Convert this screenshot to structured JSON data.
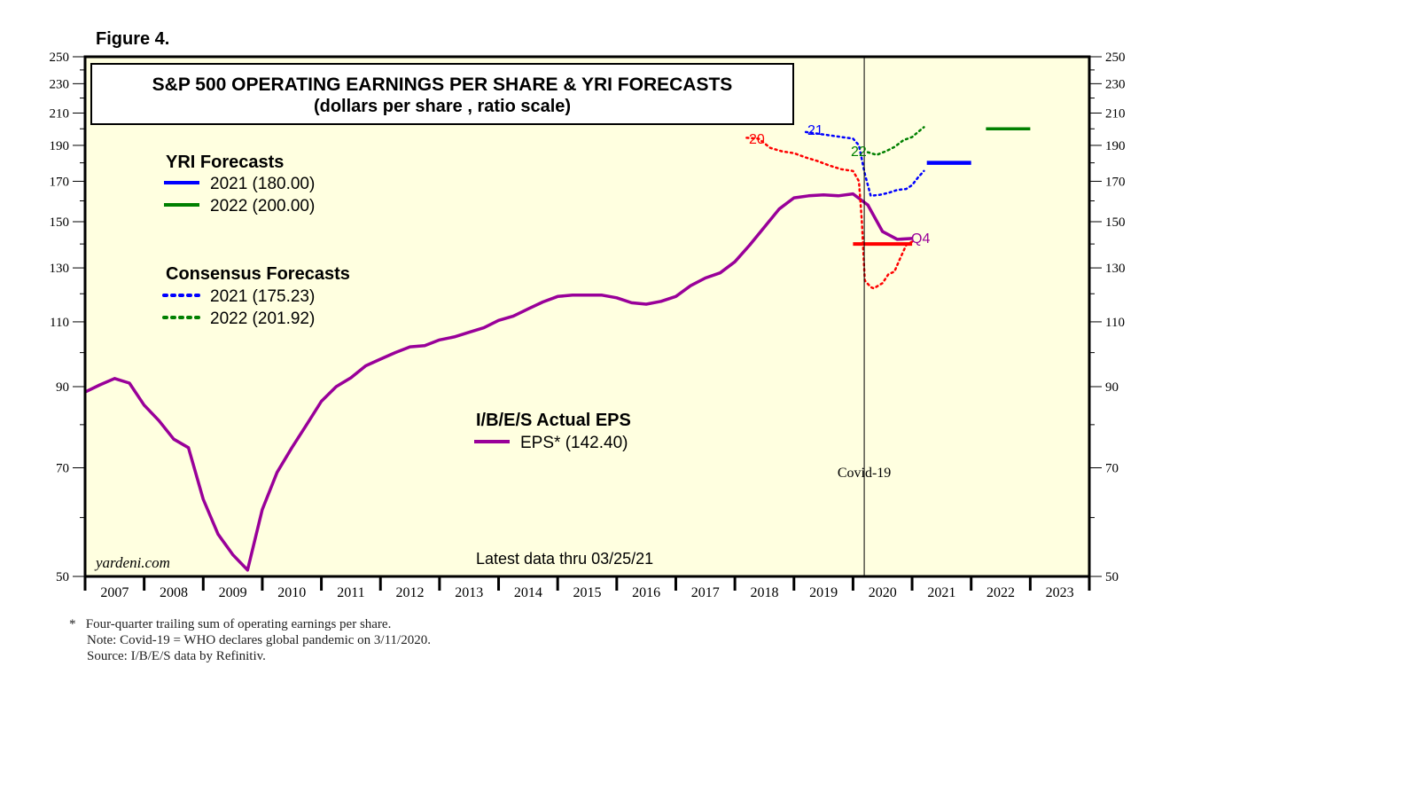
{
  "figure_label": "Figure 4.",
  "footnotes": {
    "star": "*",
    "line1": "Four-quarter trailing sum of operating earnings per share.",
    "line2": "Note: Covid-19 = WHO declares global pandemic on 3/11/2020.",
    "line3": "Source: I/B/E/S data by Refinitiv."
  },
  "colors": {
    "background": "#ffffe0",
    "eps": "#990099",
    "yri_2021": "#0000ff",
    "yri_2022": "#008000",
    "cons_2020": "#ff0000",
    "cons_2021": "#0000ff",
    "cons_2022": "#008000"
  },
  "chart_data": {
    "type": "line",
    "title": "S&P 500 OPERATING EARNINGS PER SHARE & YRI FORECASTS",
    "subtitle": "(dollars per share , ratio scale)",
    "yscale": "log",
    "ylim": [
      50,
      250
    ],
    "xlim": [
      2007,
      2024
    ],
    "y_ticks": [
      50,
      70,
      90,
      110,
      130,
      150,
      170,
      190,
      210,
      230,
      250
    ],
    "x_tick_labels": [
      "2007",
      "2008",
      "2009",
      "2010",
      "2011",
      "2012",
      "2013",
      "2014",
      "2015",
      "2016",
      "2017",
      "2018",
      "2019",
      "2020",
      "2021",
      "2022",
      "2023"
    ],
    "annotations": {
      "watermark": "yardeni.com",
      "latest": "Latest data thru 03/25/21",
      "covid": "Covid-19",
      "covid_x": 2020.19,
      "q4": "Q4",
      "label_20": "20",
      "label_21": "21",
      "label_22": "22"
    },
    "legend": {
      "yri_title": "YRI Forecasts",
      "yri_2021": "2021 (180.00)",
      "yri_2022": "2022 (200.00)",
      "cons_title": "Consensus Forecasts",
      "cons_2021": "2021 (175.23)",
      "cons_2022": "2022 (201.92)",
      "eps_title": "I/B/E/S Actual EPS",
      "eps_label": "EPS* (142.40)"
    },
    "series": [
      {
        "name": "EPS",
        "style": "solid",
        "x": [
          2007.0,
          2007.25,
          2007.5,
          2007.75,
          2008.0,
          2008.25,
          2008.5,
          2008.75,
          2009.0,
          2009.25,
          2009.5,
          2009.75,
          2010.0,
          2010.25,
          2010.5,
          2010.75,
          2011.0,
          2011.25,
          2011.5,
          2011.75,
          2012.0,
          2012.25,
          2012.5,
          2012.75,
          2013.0,
          2013.25,
          2013.5,
          2013.75,
          2014.0,
          2014.25,
          2014.5,
          2014.75,
          2015.0,
          2015.25,
          2015.5,
          2015.75,
          2016.0,
          2016.25,
          2016.5,
          2016.75,
          2017.0,
          2017.25,
          2017.5,
          2017.75,
          2018.0,
          2018.25,
          2018.5,
          2018.75,
          2019.0,
          2019.25,
          2019.5,
          2019.75,
          2020.0,
          2020.25,
          2020.5,
          2020.75,
          2021.0
        ],
        "values": [
          88.5,
          90.5,
          92.3,
          91.0,
          85.0,
          81.0,
          76.5,
          74.5,
          63.5,
          57.0,
          53.5,
          51.0,
          61.5,
          69.0,
          74.5,
          80.0,
          86.0,
          90.0,
          92.5,
          96.0,
          98.0,
          100.0,
          101.8,
          102.2,
          104.0,
          105.0,
          106.5,
          108.0,
          110.5,
          112.0,
          114.5,
          117.0,
          119.0,
          119.5,
          119.5,
          119.5,
          118.5,
          116.7,
          116.2,
          117.2,
          119.0,
          123.0,
          126.0,
          128.0,
          132.5,
          139.5,
          147.5,
          156.0,
          161.5,
          162.5,
          163.0,
          162.5,
          163.5,
          158.0,
          145.5,
          142.0,
          142.4
        ]
      },
      {
        "name": "Consensus 2020",
        "style": "dotted",
        "x": [
          2018.2,
          2018.4,
          2018.6,
          2018.8,
          2019.0,
          2019.2,
          2019.4,
          2019.6,
          2019.8,
          2020.0,
          2020.1,
          2020.15,
          2020.2,
          2020.3,
          2020.35,
          2020.5,
          2020.6,
          2020.7,
          2020.8,
          2020.9,
          2021.0
        ],
        "values": [
          194.5,
          194.0,
          188.5,
          186.5,
          185.5,
          183.0,
          181.0,
          178.5,
          176.5,
          175.5,
          170.0,
          150.0,
          125.0,
          122.5,
          122.0,
          124.0,
          127.5,
          128.5,
          134.0,
          139.5,
          141.0
        ]
      },
      {
        "name": "Consensus 2021",
        "style": "dotted",
        "x": [
          2019.2,
          2019.4,
          2019.6,
          2019.8,
          2020.0,
          2020.1,
          2020.2,
          2020.3,
          2020.45,
          2020.6,
          2020.75,
          2020.9,
          2021.0,
          2021.1,
          2021.2
        ],
        "values": [
          198.0,
          197.0,
          196.0,
          195.0,
          194.0,
          190.0,
          174.0,
          162.5,
          163.0,
          164.0,
          165.5,
          166.0,
          168.0,
          172.0,
          175.5
        ]
      },
      {
        "name": "Consensus 2022",
        "style": "dotted",
        "x": [
          2020.25,
          2020.4,
          2020.55,
          2020.7,
          2020.85,
          2021.0,
          2021.1,
          2021.2
        ],
        "values": [
          186.0,
          184.5,
          186.5,
          189.0,
          193.0,
          195.0,
          198.0,
          201.0
        ]
      },
      {
        "name": "Consensus 2020 actual (bar)",
        "style": "solid",
        "x": [
          2020.0,
          2021.0
        ],
        "values": [
          140.0,
          140.0
        ]
      },
      {
        "name": "YRI 2021",
        "style": "solid",
        "x": [
          2021.25,
          2022.0
        ],
        "values": [
          180.0,
          180.0
        ]
      },
      {
        "name": "YRI 2022",
        "style": "solid",
        "x": [
          2022.25,
          2023.0
        ],
        "values": [
          200.0,
          200.0
        ]
      }
    ]
  }
}
